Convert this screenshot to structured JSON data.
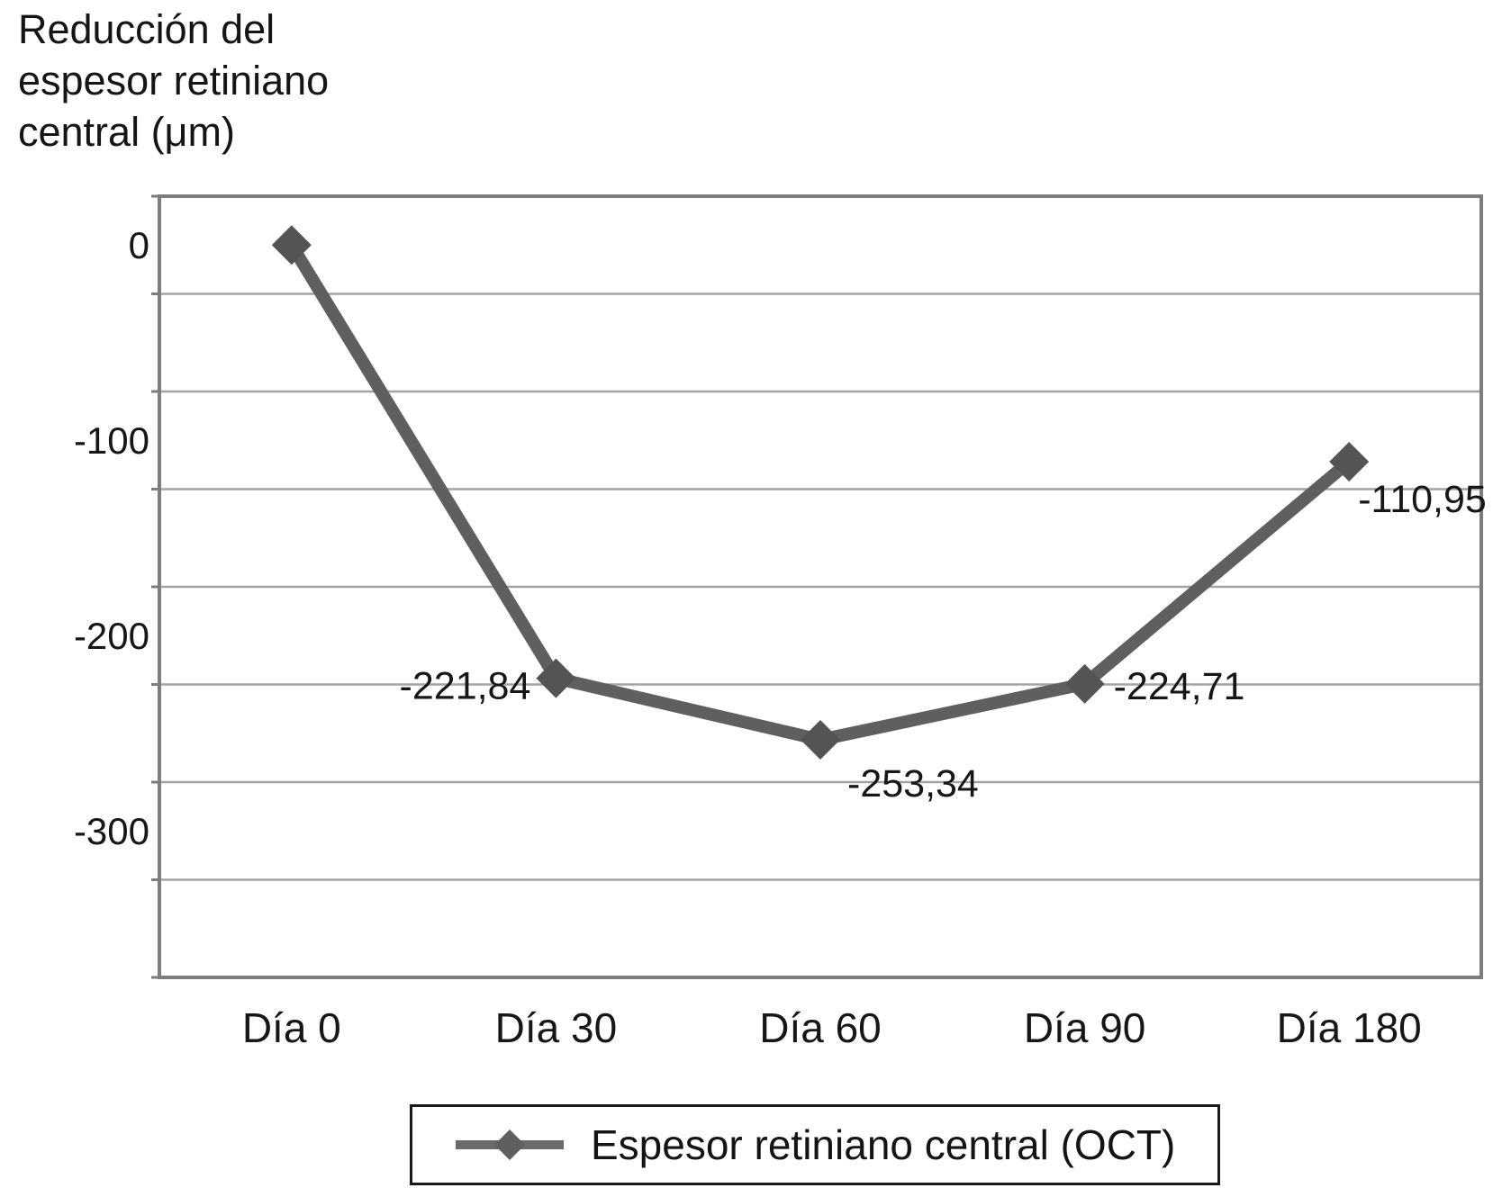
{
  "title": {
    "lines": [
      "Reducción del",
      "espesor retiniano",
      "central (μm)"
    ]
  },
  "legend": {
    "label": "Espesor retiniano central (OCT)"
  },
  "chart_data": {
    "type": "line",
    "title": "Reducción del espesor retiniano central (μm)",
    "xlabel": "",
    "ylabel": "Reducción del espesor retiniano central (μm)",
    "categories": [
      "Día 0",
      "Día 30",
      "Día 60",
      "Día 90",
      "Día 180"
    ],
    "series": [
      {
        "name": "Espesor retiniano central (OCT)",
        "values": [
          0,
          -221.84,
          -253.34,
          -224.71,
          -110.95
        ],
        "marker": "diamond"
      }
    ],
    "point_labels": [
      "",
      "-221,84",
      "-253,34",
      "-224,71",
      "-110,95"
    ],
    "y_ticks": [
      0,
      -100,
      -200,
      -300
    ],
    "y_tick_labels": [
      "0",
      "-100",
      "-200",
      "-300"
    ],
    "ylim": [
      25,
      -375
    ],
    "gridline_step": 50,
    "grid": true,
    "legend_position": "bottom",
    "colors": {
      "line": "#5f5f5f",
      "marker": "#545454",
      "gridline": "#a3a3a3",
      "plot_border": "#7d7d7d",
      "text": "#161616",
      "background": "#ffffff"
    }
  }
}
